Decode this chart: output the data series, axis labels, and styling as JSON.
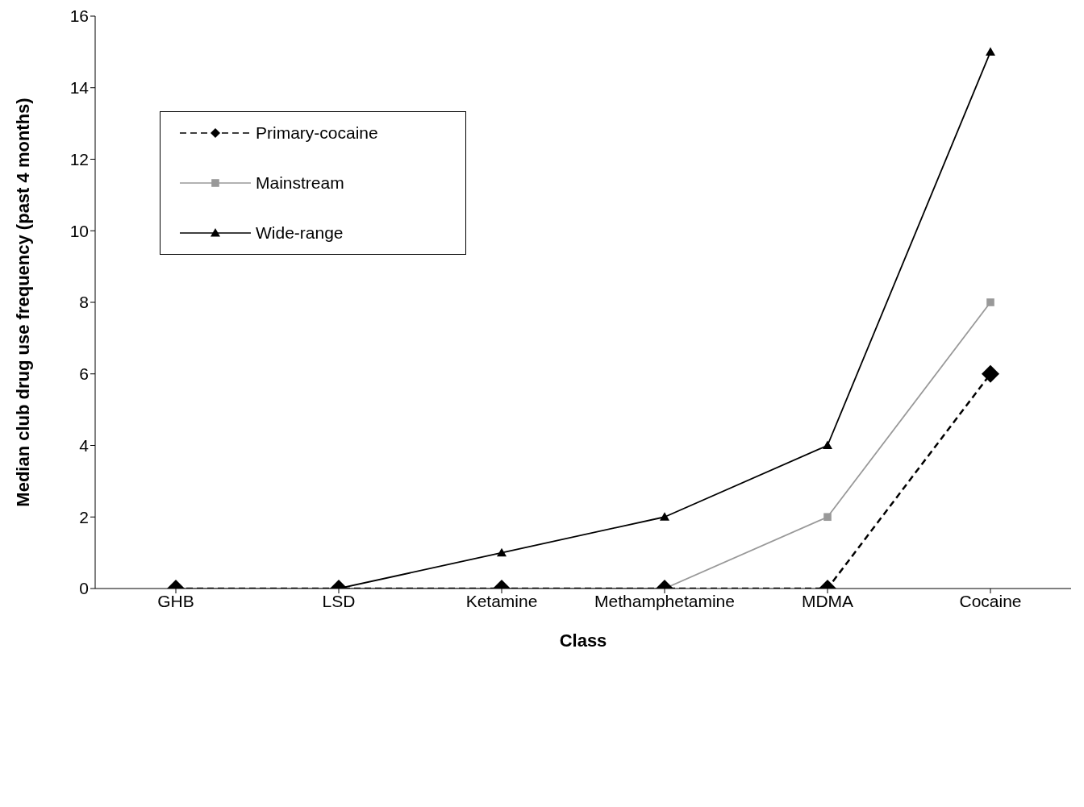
{
  "chart_data": {
    "type": "line",
    "xlabel": "Class",
    "ylabel": "Median club drug use frequency (past 4 months)",
    "categories": [
      "GHB",
      "LSD",
      "Ketamine",
      "Methamphetamine",
      "MDMA",
      "Cocaine"
    ],
    "series": [
      {
        "name": "Primary-cocaine",
        "color": "#000000",
        "marker": "diamond",
        "line_style": "dashed",
        "values": [
          0,
          0,
          0,
          0,
          0,
          6
        ]
      },
      {
        "name": "Mainstream",
        "color": "#999999",
        "marker": "square",
        "line_style": "solid",
        "values": [
          0,
          0,
          0,
          0,
          2,
          8
        ]
      },
      {
        "name": "Wide-range",
        "color": "#000000",
        "marker": "triangle",
        "line_style": "solid",
        "values": [
          0,
          0,
          1,
          2,
          4,
          15
        ]
      }
    ],
    "ylim": [
      0,
      16
    ],
    "yticks": [
      0,
      2,
      4,
      6,
      8,
      10,
      12,
      14,
      16
    ],
    "grid": false,
    "legend": "top left"
  }
}
